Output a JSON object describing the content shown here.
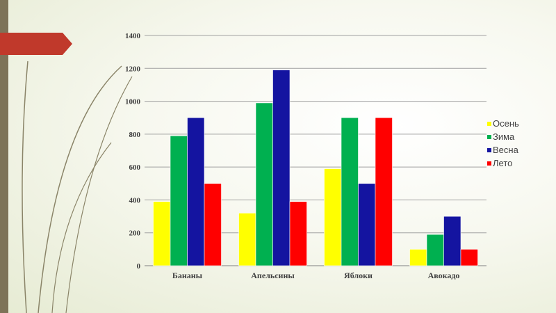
{
  "colors": {
    "background": "#f4f6e8",
    "accent_bar": "#7d7358",
    "banner": "#c0392b",
    "gridline": "#a0a0a0"
  },
  "chart_data": {
    "type": "bar",
    "categories": [
      "Бананы",
      "Апельсины",
      "Яблоки",
      "Авокадо"
    ],
    "series": [
      {
        "name": "Осень",
        "color": "#ffff00",
        "values": [
          390,
          320,
          590,
          100
        ]
      },
      {
        "name": "Зима",
        "color": "#00b050",
        "values": [
          790,
          990,
          900,
          190
        ]
      },
      {
        "name": "Весна",
        "color": "#1414a0",
        "values": [
          900,
          1190,
          500,
          300
        ]
      },
      {
        "name": "Лето",
        "color": "#ff0000",
        "values": [
          500,
          390,
          900,
          100
        ]
      }
    ],
    "ylim": [
      0,
      1400
    ],
    "yticks": [
      0,
      200,
      400,
      600,
      800,
      1000,
      1200,
      1400
    ],
    "grid": true,
    "legend": "right"
  }
}
